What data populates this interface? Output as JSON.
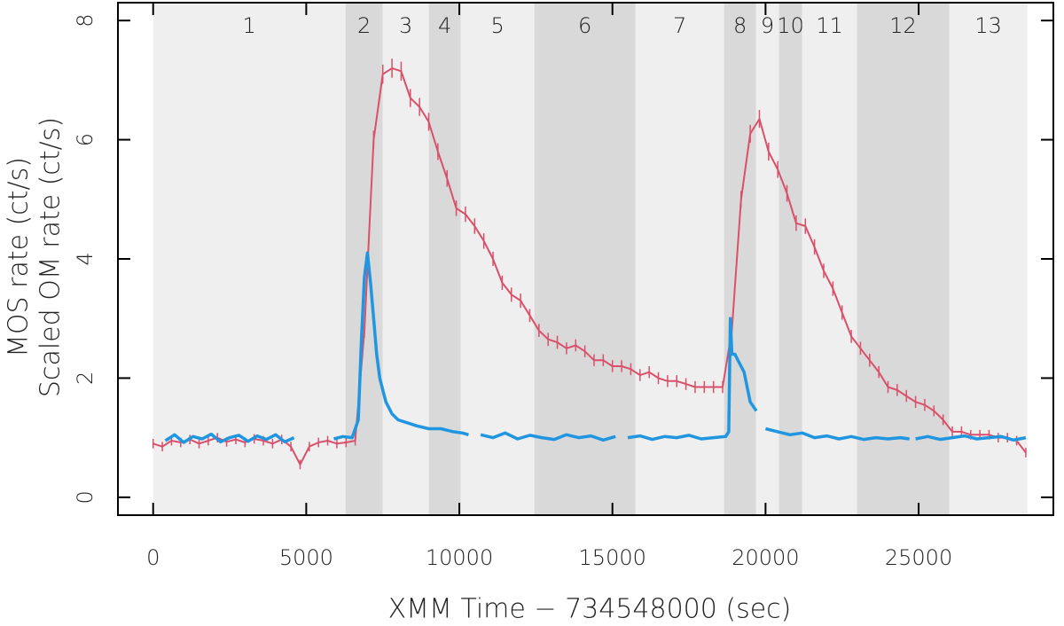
{
  "chart_data": {
    "type": "line",
    "xlabel": "XMM Time − 734548000 (sec)",
    "ylabels": [
      {
        "text": "MOS rate (ct/s)",
        "color": "#d9506a"
      },
      {
        "text": "Scaled OM rate (ct/s)",
        "color": "#2196e0"
      }
    ],
    "xlim": [
      -1150,
      29400
    ],
    "ylim": [
      -0.3,
      8.3
    ],
    "xticks": [
      0,
      5000,
      10000,
      15000,
      20000,
      25000
    ],
    "yticks": [
      0,
      2,
      4,
      6,
      8
    ],
    "intervals": [
      {
        "label": "1",
        "start": 0,
        "end": 6283,
        "color": "#efefef"
      },
      {
        "label": "2",
        "start": 6283,
        "end": 7499,
        "color": "#d9d9d9"
      },
      {
        "label": "3",
        "start": 7499,
        "end": 9004,
        "color": "#efefef"
      },
      {
        "label": "4",
        "start": 9004,
        "end": 10046,
        "color": "#d9d9d9"
      },
      {
        "label": "5",
        "start": 10046,
        "end": 12449,
        "color": "#efefef"
      },
      {
        "label": "6",
        "start": 12449,
        "end": 15750,
        "color": "#d9d9d9"
      },
      {
        "label": "7",
        "start": 15750,
        "end": 18645,
        "color": "#efefef"
      },
      {
        "label": "8",
        "start": 18645,
        "end": 19687,
        "color": "#d9d9d9"
      },
      {
        "label": "9",
        "start": 19687,
        "end": 20440,
        "color": "#efefef"
      },
      {
        "label": "10",
        "start": 20440,
        "end": 21193,
        "color": "#d9d9d9"
      },
      {
        "label": "11",
        "start": 21193,
        "end": 22988,
        "color": "#efefef"
      },
      {
        "label": "12",
        "start": 22988,
        "end": 25999,
        "color": "#d9d9d9"
      },
      {
        "label": "13",
        "start": 25999,
        "end": 28550,
        "color": "#efefef"
      }
    ],
    "series": [
      {
        "color": "#d9506a",
        "x": [
          0,
          300,
          600,
          900,
          1200,
          1500,
          1800,
          2100,
          2400,
          2700,
          3000,
          3300,
          3600,
          3900,
          4200,
          4500,
          4800,
          5100,
          5400,
          5700,
          6000,
          6300,
          6600,
          6900,
          7200,
          7500,
          7800,
          8100,
          8400,
          8700,
          9000,
          9300,
          9600,
          9900,
          10200,
          10500,
          10800,
          11100,
          11400,
          11700,
          12000,
          12300,
          12600,
          12900,
          13200,
          13500,
          13800,
          14100,
          14400,
          14700,
          15000,
          15300,
          15600,
          15900,
          16200,
          16500,
          16800,
          17100,
          17400,
          17700,
          18000,
          18300,
          18600,
          18900,
          19200,
          19500,
          19800,
          20100,
          20400,
          20700,
          21000,
          21300,
          21600,
          21900,
          22200,
          22500,
          22800,
          23100,
          23400,
          23700,
          24000,
          24300,
          24600,
          24900,
          25200,
          25500,
          25800,
          26100,
          26400,
          26700,
          27000,
          27300,
          27600,
          27900,
          28200,
          28500
        ],
        "values": [
          0.9,
          0.85,
          0.95,
          0.92,
          0.97,
          0.9,
          0.95,
          1.0,
          0.93,
          0.97,
          0.92,
          0.98,
          0.95,
          0.9,
          0.97,
          0.85,
          0.55,
          0.85,
          0.92,
          0.95,
          0.9,
          0.92,
          0.95,
          2.8,
          6.0,
          7.1,
          7.2,
          7.15,
          6.7,
          6.55,
          6.3,
          5.8,
          5.35,
          4.85,
          4.75,
          4.55,
          4.3,
          4.0,
          3.6,
          3.4,
          3.3,
          3.05,
          2.8,
          2.65,
          2.6,
          2.5,
          2.55,
          2.45,
          2.3,
          2.3,
          2.2,
          2.2,
          2.15,
          2.05,
          2.1,
          2.0,
          1.95,
          1.95,
          1.9,
          1.85,
          1.85,
          1.85,
          1.85,
          2.8,
          5.0,
          6.1,
          6.35,
          5.8,
          5.5,
          5.1,
          4.6,
          4.55,
          4.2,
          3.8,
          3.5,
          3.1,
          2.7,
          2.5,
          2.3,
          2.1,
          1.85,
          1.8,
          1.7,
          1.6,
          1.55,
          1.45,
          1.3,
          1.1,
          1.1,
          1.05,
          1.05,
          1.05,
          1.0,
          1.0,
          0.95,
          0.75
        ],
        "errors": [
          0.08,
          0.08,
          0.08,
          0.08,
          0.08,
          0.08,
          0.08,
          0.08,
          0.08,
          0.08,
          0.08,
          0.08,
          0.08,
          0.08,
          0.08,
          0.08,
          0.08,
          0.08,
          0.08,
          0.08,
          0.08,
          0.08,
          0.08,
          0.12,
          0.15,
          0.16,
          0.16,
          0.16,
          0.15,
          0.15,
          0.15,
          0.14,
          0.14,
          0.13,
          0.13,
          0.13,
          0.13,
          0.12,
          0.12,
          0.12,
          0.12,
          0.11,
          0.11,
          0.11,
          0.11,
          0.1,
          0.1,
          0.1,
          0.1,
          0.1,
          0.1,
          0.1,
          0.1,
          0.1,
          0.1,
          0.1,
          0.1,
          0.1,
          0.1,
          0.1,
          0.1,
          0.1,
          0.1,
          0.12,
          0.14,
          0.15,
          0.15,
          0.15,
          0.14,
          0.14,
          0.13,
          0.13,
          0.13,
          0.12,
          0.12,
          0.12,
          0.11,
          0.11,
          0.11,
          0.1,
          0.1,
          0.1,
          0.1,
          0.1,
          0.1,
          0.09,
          0.09,
          0.09,
          0.09,
          0.08,
          0.08,
          0.08,
          0.08,
          0.08,
          0.08,
          0.08
        ]
      },
      {
        "color": "#2196e0",
        "x": [
          400,
          700,
          1000,
          1300,
          1600,
          1900,
          2200,
          2500,
          2800,
          3100,
          3400,
          3700,
          4000,
          4300,
          4600,
          5200,
          5900,
          6200,
          6500,
          6700,
          6800,
          6900,
          7000,
          7100,
          7200,
          7300,
          7400,
          7600,
          7800,
          8000,
          8300,
          8600,
          9000,
          9400,
          9800,
          10100,
          10300,
          10500,
          10700,
          11100,
          11500,
          11900,
          12300,
          12700,
          13100,
          13500,
          13900,
          14300,
          14700,
          15100,
          15300,
          15500,
          15900,
          16300,
          16700,
          17100,
          17500,
          17900,
          18300,
          18700,
          18800,
          18850,
          18900,
          19000,
          19100,
          19300,
          19500,
          19700,
          19900,
          20000,
          20400,
          20800,
          21200,
          21600,
          22000,
          22400,
          22800,
          23200,
          23600,
          24000,
          24400,
          24700,
          24800,
          24900,
          25300,
          25700,
          26100,
          26500,
          26900,
          27300,
          27700,
          28100,
          28500
        ],
        "values": [
          0.95,
          1.05,
          0.92,
          1.02,
          0.98,
          1.06,
          0.93,
          1.0,
          1.04,
          0.94,
          1.03,
          0.97,
          1.05,
          0.93,
          1.0,
          null,
          0.98,
          1.02,
          1.0,
          1.3,
          2.6,
          3.7,
          4.1,
          3.6,
          3.0,
          2.4,
          2.0,
          1.6,
          1.4,
          1.3,
          1.25,
          1.2,
          1.15,
          1.15,
          1.1,
          1.08,
          1.05,
          null,
          1.05,
          1.0,
          1.08,
          0.98,
          1.04,
          1.0,
          0.97,
          1.05,
          1.0,
          1.03,
          0.96,
          1.02,
          null,
          1.0,
          1.03,
          0.97,
          1.02,
          1.0,
          1.04,
          0.98,
          1.0,
          1.02,
          1.1,
          3.0,
          2.4,
          2.4,
          2.3,
          2.1,
          1.6,
          1.45,
          null,
          1.15,
          1.1,
          1.05,
          1.08,
          1.0,
          1.03,
          0.98,
          1.02,
          0.97,
          1.0,
          0.98,
          1.0,
          0.98,
          null,
          0.98,
          1.02,
          0.97,
          1.0,
          1.03,
          0.98,
          1.0,
          1.02,
          0.96,
          1.0
        ]
      }
    ]
  }
}
